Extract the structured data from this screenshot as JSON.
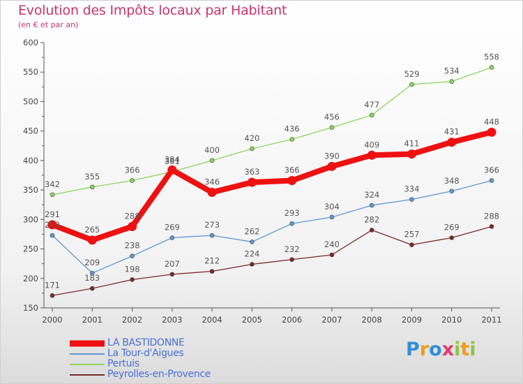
{
  "title": "Evolution des Impôts locaux par Habitant",
  "subtitle": "(en € et par an)",
  "brand": {
    "name": "Proxiti",
    "letters": [
      {
        "ch": "P",
        "color": "#2f8fd8"
      },
      {
        "ch": "r",
        "color": "#f39a1f"
      },
      {
        "ch": "o",
        "color": "#2f8fd8"
      },
      {
        "ch": "x",
        "color": "#e23a6e"
      },
      {
        "ch": "i",
        "color": "#8cc63f"
      },
      {
        "ch": "t",
        "color": "#f39a1f"
      },
      {
        "ch": "i",
        "color": "#8cc63f"
      }
    ]
  },
  "chart_data": {
    "type": "line",
    "x": [
      "2000",
      "2001",
      "2002",
      "2003",
      "2004",
      "2005",
      "2006",
      "2007",
      "2008",
      "2009",
      "2010",
      "2011"
    ],
    "ylim": [
      150,
      600
    ],
    "yticks": [
      "150",
      "200",
      "250",
      "300",
      "350",
      "400",
      "450",
      "500",
      "550",
      "600"
    ],
    "grid": false,
    "legend_position": "bottom-left",
    "series": [
      {
        "name": "LA BASTIDONNE",
        "color": "#ee1111",
        "values": [
          291,
          265,
          288,
          384,
          346,
          363,
          366,
          390,
          409,
          411,
          431,
          448
        ],
        "labels": [
          "291",
          "265",
          "288",
          "384",
          "346",
          "363",
          "366",
          "390",
          "409",
          "411",
          "431",
          "448"
        ]
      },
      {
        "name": "La Tour-d'Aigues",
        "color": "#5f98cf",
        "values": [
          273,
          209,
          238,
          269,
          273,
          262,
          293,
          304,
          324,
          334,
          348,
          366
        ],
        "labels": [
          "273",
          "209",
          "238",
          "269",
          "273",
          "262",
          "293",
          "304",
          "324",
          "334",
          "348",
          "366"
        ]
      },
      {
        "name": "Pertuis",
        "color": "#8dd35f",
        "values": [
          342,
          355,
          366,
          381,
          400,
          420,
          436,
          456,
          477,
          529,
          534,
          558
        ],
        "labels": [
          "342",
          "355",
          "366",
          "381",
          "400",
          "420",
          "436",
          "456",
          "477",
          "529",
          "534",
          "558"
        ]
      },
      {
        "name": "Peyrolles-en-Provence",
        "color": "#7a2a2a",
        "values": [
          171,
          183,
          198,
          207,
          212,
          224,
          232,
          240,
          282,
          257,
          269,
          288
        ],
        "labels": [
          "171",
          "183",
          "198",
          "207",
          "212",
          "224",
          "232",
          "240",
          "282",
          "257",
          "269",
          "288"
        ]
      }
    ]
  }
}
